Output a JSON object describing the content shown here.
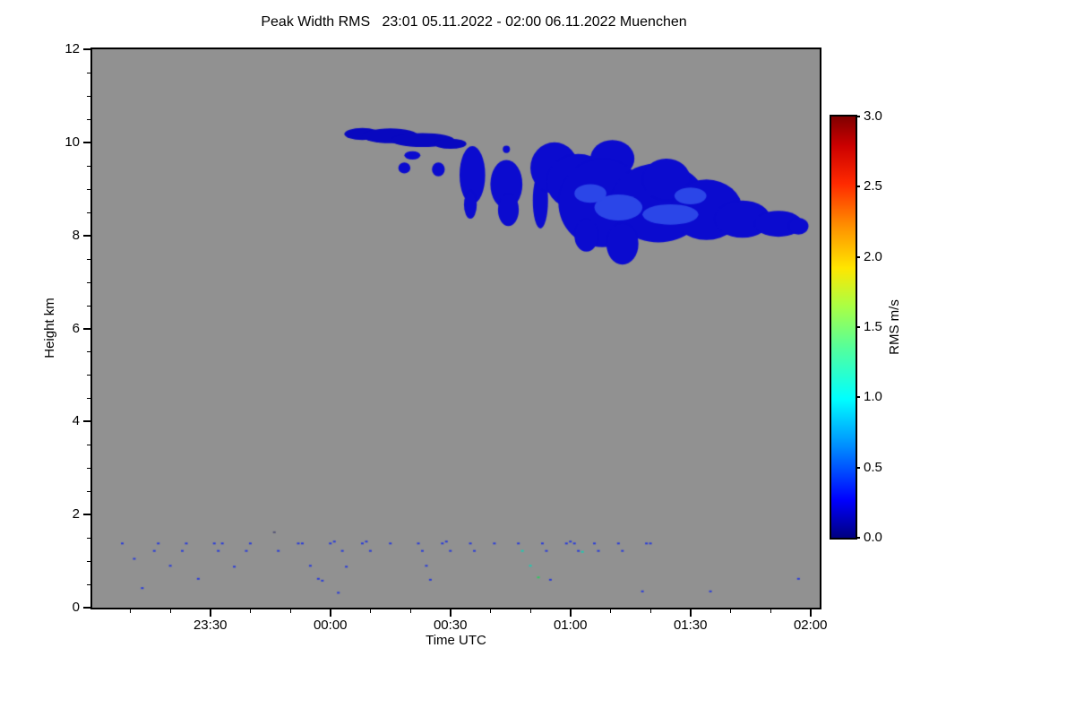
{
  "chart_data": {
    "type": "heatmap",
    "title": "Peak Width RMS   23:01 05.11.2022 - 02:00 06.11.2022 Muenchen",
    "instrument_quantity": "Peak Width RMS",
    "time_range": "23:01 05.11.2022 - 02:00 06.11.2022",
    "station": "Muenchen",
    "xlabel": "Time UTC",
    "ylabel": "Height km",
    "xlim_minutes_from_midnight": [
      -59.5,
      122.3
    ],
    "ylim_km": [
      0,
      12
    ],
    "x_ticks": [
      {
        "minute": -30,
        "label": "23:30"
      },
      {
        "minute": 0,
        "label": "00:00"
      },
      {
        "minute": 30,
        "label": "00:30"
      },
      {
        "minute": 60,
        "label": "01:00"
      },
      {
        "minute": 90,
        "label": "01:30"
      },
      {
        "minute": 120,
        "label": "02:00"
      }
    ],
    "x_minor_tick_step_minutes": 10,
    "y_ticks": [
      0,
      2,
      4,
      6,
      8,
      10,
      12
    ],
    "y_minor_tick_step_km": 0.5,
    "grid": false,
    "plot_background_color": "#919191",
    "colorbar": {
      "label": "RMS m/s",
      "range": [
        0.0,
        3.0
      ],
      "tick_values": [
        0.0,
        0.5,
        1.0,
        1.5,
        2.0,
        2.5,
        3.0
      ],
      "colormap": "jet",
      "gradient_stops": [
        {
          "v": 0.0,
          "c": "#000080"
        },
        {
          "v": 0.09,
          "c": "#0000ff"
        },
        {
          "v": 0.22,
          "c": "#0090ff"
        },
        {
          "v": 0.33,
          "c": "#00ffff"
        },
        {
          "v": 0.45,
          "c": "#54ff9c"
        },
        {
          "v": 0.55,
          "c": "#aaff44"
        },
        {
          "v": 0.64,
          "c": "#ffe600"
        },
        {
          "v": 0.74,
          "c": "#ff9000"
        },
        {
          "v": 0.84,
          "c": "#ff2a00"
        },
        {
          "v": 0.93,
          "c": "#cc0000"
        },
        {
          "v": 1.0,
          "c": "#800000"
        }
      ]
    },
    "cloud_layer": {
      "description": "Cirrus-like cloud band, RMS approx 0.1-0.3 m/s (dark blue), heights 7.4-10.3 km, approx 00:04-01:57 UTC",
      "value_rms_ms": 0.2,
      "color": "#0b0bcf",
      "inner_streak_color": "#2b46e8",
      "blobs": [
        [
          8,
          10.18,
          4.5,
          0.13,
          "#0808c0"
        ],
        [
          15,
          10.14,
          7,
          0.16,
          "#0808c0"
        ],
        [
          23,
          10.05,
          8,
          0.15,
          "#0808c0"
        ],
        [
          30,
          9.97,
          4,
          0.11,
          "#0808c0"
        ],
        [
          20.5,
          9.72,
          2,
          0.09
        ],
        [
          18.5,
          9.45,
          1.5,
          0.12
        ],
        [
          27,
          9.42,
          1.6,
          0.15
        ],
        [
          35.5,
          9.3,
          3.2,
          0.62
        ],
        [
          35,
          8.66,
          1.6,
          0.3
        ],
        [
          44,
          9.1,
          4,
          0.52
        ],
        [
          44.5,
          8.55,
          2.6,
          0.35
        ],
        [
          44,
          9.85,
          0.9,
          0.08
        ],
        [
          52.5,
          8.75,
          1.9,
          0.6
        ],
        [
          56,
          9.45,
          6,
          0.55
        ],
        [
          62,
          9.15,
          8,
          0.6
        ],
        [
          70.5,
          9.65,
          5.5,
          0.4
        ],
        [
          68,
          8.7,
          11,
          0.95
        ],
        [
          82,
          8.7,
          12,
          0.85
        ],
        [
          84,
          9.2,
          6,
          0.45
        ],
        [
          94,
          8.55,
          9,
          0.65
        ],
        [
          73,
          7.82,
          4,
          0.45
        ],
        [
          64,
          8.0,
          3,
          0.35
        ],
        [
          103,
          8.35,
          7,
          0.4
        ],
        [
          112,
          8.25,
          6,
          0.28
        ],
        [
          117,
          8.2,
          2.5,
          0.18
        ]
      ],
      "inner_streaks": [
        [
          72,
          8.6,
          6,
          0.28
        ],
        [
          85,
          8.45,
          7,
          0.22
        ],
        [
          90,
          8.85,
          4,
          0.18
        ],
        [
          65,
          8.9,
          4,
          0.2
        ]
      ]
    },
    "boundary_layer_echoes": {
      "description": "Scattered weak echoes below 1.6 km across whole period",
      "default_color": "#2a3cd8",
      "dots": [
        [
          -52,
          1.38
        ],
        [
          -49,
          1.05
        ],
        [
          -47,
          0.42
        ],
        [
          -44,
          1.22
        ],
        [
          -43,
          1.38
        ],
        [
          -40,
          0.9
        ],
        [
          -37,
          1.22
        ],
        [
          -36,
          1.38
        ],
        [
          -33,
          0.62
        ],
        [
          -29,
          1.38
        ],
        [
          -28,
          1.22
        ],
        [
          -27,
          1.38
        ],
        [
          -24,
          0.88
        ],
        [
          -21,
          1.22
        ],
        [
          -20,
          1.38
        ],
        [
          -14,
          1.62,
          "#555577"
        ],
        [
          -13,
          1.22
        ],
        [
          -8,
          1.38
        ],
        [
          -7,
          1.38
        ],
        [
          -5,
          0.9
        ],
        [
          -3,
          0.62
        ],
        [
          -2,
          0.58
        ],
        [
          0,
          1.38
        ],
        [
          1,
          1.42
        ],
        [
          2,
          0.32
        ],
        [
          3,
          1.22
        ],
        [
          4,
          0.88
        ],
        [
          8,
          1.38
        ],
        [
          9,
          1.42
        ],
        [
          10,
          1.22
        ],
        [
          15,
          1.38
        ],
        [
          22,
          1.38
        ],
        [
          23,
          1.22
        ],
        [
          24,
          0.9
        ],
        [
          25,
          0.6
        ],
        [
          28,
          1.38
        ],
        [
          29,
          1.42
        ],
        [
          30,
          1.22
        ],
        [
          35,
          1.38
        ],
        [
          36,
          1.22
        ],
        [
          41,
          1.38
        ],
        [
          47,
          1.38
        ],
        [
          48,
          1.22,
          "#20c8b0"
        ],
        [
          50,
          0.9,
          "#20c8b0"
        ],
        [
          52,
          0.65,
          "#30c860"
        ],
        [
          53,
          1.38
        ],
        [
          54,
          1.22
        ],
        [
          55,
          0.6
        ],
        [
          59,
          1.38
        ],
        [
          60,
          1.42
        ],
        [
          61,
          1.38
        ],
        [
          62,
          1.22
        ],
        [
          63,
          1.2,
          "#20c8b0"
        ],
        [
          66,
          1.38
        ],
        [
          67,
          1.22
        ],
        [
          72,
          1.38
        ],
        [
          73,
          1.22
        ],
        [
          78,
          0.35
        ],
        [
          79,
          1.38
        ],
        [
          80,
          1.38
        ],
        [
          95,
          0.35
        ],
        [
          117,
          0.62
        ]
      ]
    }
  }
}
